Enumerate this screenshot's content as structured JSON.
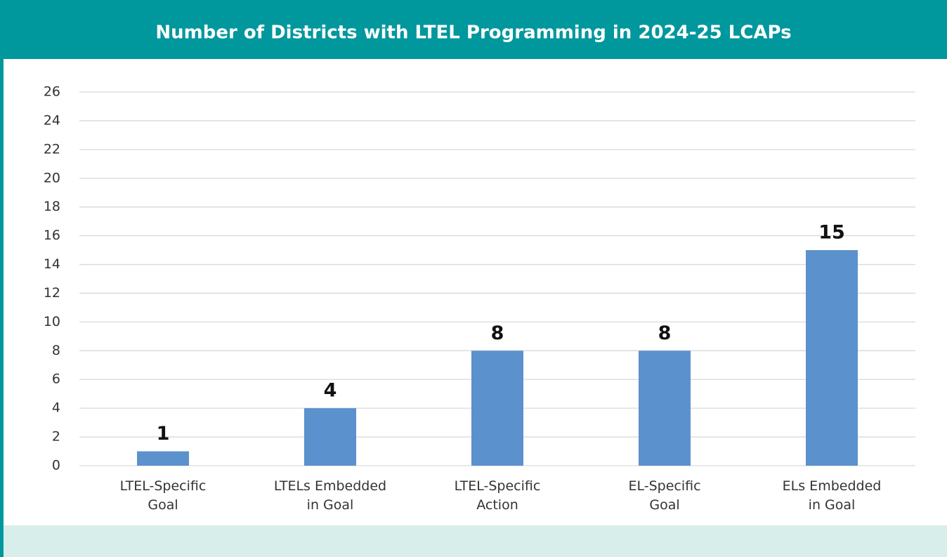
{
  "chart_data": {
    "type": "bar",
    "title": "Number of Districts with LTEL Programming in 2024-25 LCAPs",
    "categories": [
      "LTEL-Specific\nGoal",
      "LTELs Embedded\nin Goal",
      "LTEL-Specific\nAction",
      "EL-Specific\nGoal",
      "ELs Embedded\nin Goal"
    ],
    "values": [
      1,
      4,
      8,
      8,
      15
    ],
    "color": "#5b91cc",
    "ylim": [
      0,
      26
    ],
    "yticks": [
      0,
      2,
      4,
      6,
      8,
      10,
      12,
      14,
      16,
      18,
      20,
      22,
      24,
      26
    ],
    "grid": true
  }
}
